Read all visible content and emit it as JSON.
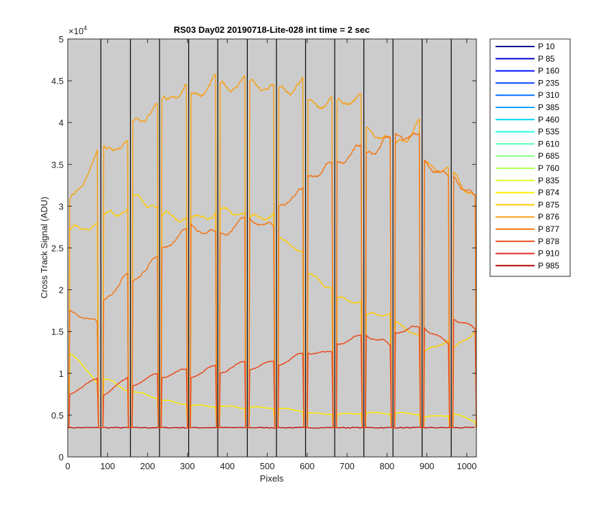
{
  "chart_data": {
    "type": "line",
    "title": "RS03 Day02 20190718-Lite-028 int time = 2 sec",
    "xlabel": "Pixels",
    "ylabel": "Cross Track Signal (ADU)",
    "exponent_label": "×10",
    "exponent_power": "4",
    "xlim": [
      0,
      1024
    ],
    "ylim": [
      0,
      50000
    ],
    "xticks": [
      0,
      100,
      200,
      300,
      400,
      500,
      600,
      700,
      800,
      900,
      1000
    ],
    "xtick_labels": [
      "0",
      "100",
      "200",
      "300",
      "400",
      "500",
      "600",
      "700",
      "800",
      "900",
      "1000"
    ],
    "yticks": [
      0,
      5000,
      10000,
      15000,
      20000,
      25000,
      30000,
      35000,
      40000,
      45000,
      50000
    ],
    "ytick_labels": [
      "0",
      "0.5",
      "1",
      "1.5",
      "2",
      "2.5",
      "3",
      "3.5",
      "4",
      "4.5",
      "5"
    ],
    "background_color": "#cccccc",
    "grid": false,
    "legend_position": "outside-right",
    "dividers": [
      0,
      83,
      157,
      230,
      303,
      376,
      450,
      523,
      596,
      669,
      742,
      815,
      888,
      961
    ],
    "segments": [
      [
        5,
        75
      ],
      [
        90,
        150
      ],
      [
        163,
        225
      ],
      [
        236,
        298
      ],
      [
        309,
        371
      ],
      [
        382,
        444
      ],
      [
        456,
        517
      ],
      [
        529,
        590
      ],
      [
        602,
        663
      ],
      [
        675,
        736
      ],
      [
        748,
        809
      ],
      [
        821,
        882
      ],
      [
        894,
        955
      ],
      [
        967,
        1022
      ]
    ],
    "baseline_level": 3500,
    "series": [
      {
        "name": "P 10",
        "color": "#00008f",
        "levels": []
      },
      {
        "name": "P 85",
        "color": "#0000c8",
        "levels": []
      },
      {
        "name": "P 160",
        "color": "#0010ff",
        "levels": []
      },
      {
        "name": "P 235",
        "color": "#0040ff",
        "levels": []
      },
      {
        "name": "P 310",
        "color": "#0070ff",
        "levels": []
      },
      {
        "name": "P 385",
        "color": "#00a0ff",
        "levels": []
      },
      {
        "name": "P 460",
        "color": "#00d0ff",
        "levels": []
      },
      {
        "name": "P 535",
        "color": "#20ffe0",
        "levels": []
      },
      {
        "name": "P 610",
        "color": "#50ffb0",
        "levels": []
      },
      {
        "name": "P 685",
        "color": "#80ff80",
        "levels": []
      },
      {
        "name": "P 760",
        "color": "#b0ff50",
        "levels": []
      },
      {
        "name": "P 835",
        "color": "#e0ff20",
        "levels": []
      },
      {
        "name": "P 874",
        "color": "#ffee00",
        "levels": [
          [
            12500,
            9000
          ],
          [
            9500,
            8000
          ],
          [
            7800,
            7000
          ],
          [
            6800,
            6300
          ],
          [
            6200,
            6000
          ],
          [
            6100,
            5900
          ],
          [
            6000,
            5800
          ],
          [
            5800,
            5500
          ],
          [
            5300,
            5100
          ],
          [
            5100,
            5200
          ],
          [
            5300,
            5200
          ],
          [
            5300,
            5100
          ],
          [
            4800,
            5000
          ],
          [
            5200,
            4200
          ]
        ]
      },
      {
        "name": "P 875",
        "color": "#ffcc00",
        "levels": [
          [
            27000,
            28000
          ],
          [
            29000,
            29500
          ],
          [
            31000,
            30000
          ],
          [
            29000,
            28500
          ],
          [
            28500,
            29000
          ],
          [
            29500,
            29000
          ],
          [
            28500,
            29000
          ],
          [
            26000,
            24500
          ],
          [
            22000,
            20000
          ],
          [
            19000,
            18500
          ],
          [
            17000,
            17000
          ],
          [
            16000,
            14500
          ],
          [
            12500,
            14000
          ],
          [
            13000,
            15000
          ]
        ]
      },
      {
        "name": "P 876",
        "color": "#f7a218",
        "levels": [
          [
            30500,
            36000
          ],
          [
            36500,
            37500
          ],
          [
            40000,
            42000
          ],
          [
            42500,
            44000
          ],
          [
            43000,
            45000
          ],
          [
            44000,
            45000
          ],
          [
            44500,
            44000
          ],
          [
            43500,
            44500
          ],
          [
            42000,
            42500
          ],
          [
            42000,
            43000
          ],
          [
            39000,
            38000
          ],
          [
            37000,
            40000
          ],
          [
            35000,
            34000
          ],
          [
            33500,
            31000
          ]
        ]
      },
      {
        "name": "P 877",
        "color": "#f27819",
        "levels": [
          [
            17500,
            16000
          ],
          [
            18500,
            22000
          ],
          [
            21000,
            24000
          ],
          [
            25000,
            27000
          ],
          [
            27500,
            26500
          ],
          [
            26500,
            28500
          ],
          [
            28500,
            27500
          ],
          [
            30000,
            32000
          ],
          [
            33500,
            35000
          ],
          [
            35000,
            37000
          ],
          [
            36000,
            38000
          ],
          [
            38500,
            38000
          ],
          [
            35000,
            33500
          ],
          [
            33500,
            31000
          ]
        ]
      },
      {
        "name": "P 878",
        "color": "#ea4a1c",
        "levels": [
          [
            7500,
            9500
          ],
          [
            7500,
            9500
          ],
          [
            8500,
            10000
          ],
          [
            9500,
            10500
          ],
          [
            9500,
            11000
          ],
          [
            10000,
            11500
          ],
          [
            10500,
            11500
          ],
          [
            11000,
            12500
          ],
          [
            12500,
            12500
          ],
          [
            13500,
            14500
          ],
          [
            14500,
            13500
          ],
          [
            15000,
            15500
          ],
          [
            15500,
            13500
          ],
          [
            16500,
            15500
          ]
        ]
      },
      {
        "name": "P 910",
        "color": "#dd2a1c",
        "levels": []
      },
      {
        "name": "P 985",
        "color": "#b00000",
        "levels": []
      }
    ]
  }
}
